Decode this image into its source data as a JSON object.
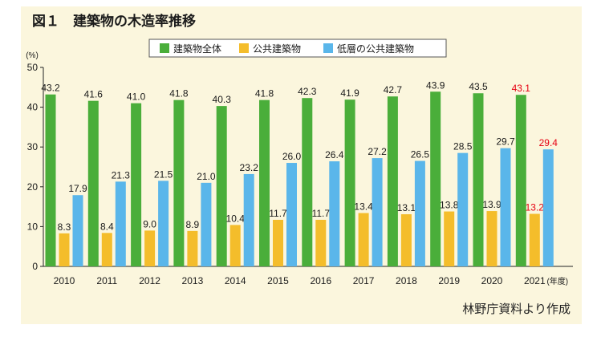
{
  "figure": {
    "title": "図１　建築物の木造率推移",
    "source_note": "林野庁資料より作成"
  },
  "colors": {
    "series_total": "#4aae3a",
    "series_public": "#f4bd2b",
    "series_lowrise": "#5ab6ea",
    "highlight_label": "#e60012",
    "label_default": "#1a1a1a",
    "background": "#fbf6dd"
  },
  "chart_data": {
    "type": "bar",
    "categories": [
      "2010",
      "2011",
      "2012",
      "2013",
      "2014",
      "2015",
      "2016",
      "2017",
      "2018",
      "2019",
      "2020",
      "2021"
    ],
    "x_unit_label": "(年度)",
    "y_unit_label": "(%)",
    "ylim": [
      0,
      50
    ],
    "yticks": [
      0,
      10,
      20,
      30,
      40,
      50
    ],
    "grid": false,
    "legend_position": "top-center",
    "highlighted_category": "2021",
    "series": [
      {
        "name": "建築物全体",
        "color_key": "series_total",
        "values": [
          43.2,
          41.6,
          41.0,
          41.8,
          40.3,
          41.8,
          42.3,
          41.9,
          42.7,
          43.9,
          43.5,
          43.1
        ],
        "labels": [
          "43.2",
          "41.6",
          "41.0",
          "41.8",
          "40.3",
          "41.8",
          "42.3",
          "41.9",
          "42.7",
          "43.9",
          "43.5",
          "43.1"
        ]
      },
      {
        "name": "公共建築物",
        "color_key": "series_public",
        "values": [
          8.3,
          8.4,
          9.0,
          8.9,
          10.4,
          11.7,
          11.7,
          13.4,
          13.1,
          13.8,
          13.9,
          13.2
        ],
        "labels": [
          "8.3",
          "8.4",
          "9.0",
          "8.9",
          "10.4",
          "11.7",
          "11.7",
          "13.4",
          "13.1",
          "13.8",
          "13.9",
          "13.2"
        ]
      },
      {
        "name": "低層の公共建築物",
        "color_key": "series_lowrise",
        "values": [
          17.9,
          21.3,
          21.5,
          21.0,
          23.2,
          26.0,
          26.4,
          27.2,
          26.5,
          28.5,
          29.7,
          29.4
        ],
        "labels": [
          "17.9",
          "21.3",
          "21.5",
          "21.0",
          "23.2",
          "26.0",
          "26.4",
          "27.2",
          "26.5",
          "28.5",
          "29.7",
          "29.4"
        ]
      }
    ]
  }
}
